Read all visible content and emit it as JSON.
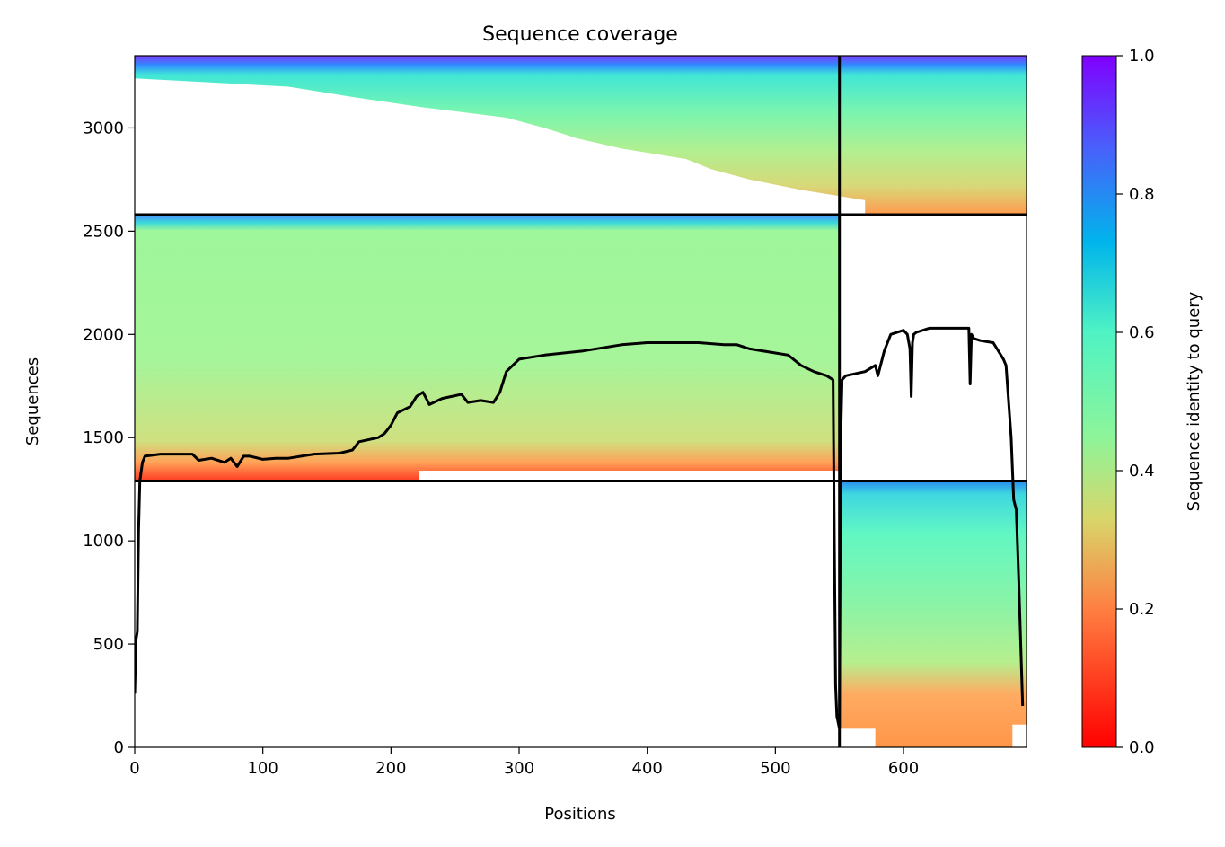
{
  "chart_data": {
    "type": "heatmap",
    "title": "Sequence coverage",
    "xlabel": "Positions",
    "ylabel": "Sequences",
    "xlim": [
      0,
      696
    ],
    "ylim": [
      0,
      3350
    ],
    "xticks": [
      0,
      100,
      200,
      300,
      400,
      500,
      600
    ],
    "xtick_labels": [
      "0",
      "100",
      "200",
      "300",
      "400",
      "500",
      "600"
    ],
    "yticks": [
      0,
      500,
      1000,
      1500,
      2000,
      2500,
      3000
    ],
    "ytick_labels": [
      "0",
      "500",
      "1000",
      "1500",
      "2000",
      "2500",
      "3000"
    ],
    "colorbar": {
      "label": "Sequence identity to query",
      "range": [
        0.0,
        1.0
      ],
      "ticks": [
        0.0,
        0.2,
        0.4,
        0.6,
        0.8,
        1.0
      ],
      "tick_labels": [
        "0.0",
        "0.2",
        "0.4",
        "0.6",
        "0.8",
        "1.0"
      ],
      "colormap": "rainbow_r"
    },
    "chain_boundaries": {
      "x": [
        550
      ],
      "y": [
        1290,
        2580
      ]
    },
    "blocks": [
      {
        "x": [
          0,
          550
        ],
        "y": [
          2580,
          3350
        ],
        "identity_top": 0.95,
        "identity_bottom": 0.22
      },
      {
        "x": [
          550,
          696
        ],
        "y": [
          2580,
          3350
        ],
        "identity_top": 0.95,
        "identity_bottom": 0.22
      },
      {
        "x": [
          0,
          550
        ],
        "y": [
          1290,
          2580
        ],
        "identity_top": 0.85,
        "identity_bottom": 0.1
      },
      {
        "x": [
          550,
          696
        ],
        "y": [
          0,
          1290
        ],
        "identity_top": 0.8,
        "identity_bottom": 0.22
      }
    ],
    "series": [
      {
        "type": "line",
        "color": "#000000",
        "x": [
          0,
          1,
          2,
          3,
          4,
          6,
          8,
          20,
          45,
          50,
          60,
          70,
          75,
          80,
          85,
          90,
          100,
          110,
          120,
          140,
          160,
          170,
          175,
          190,
          195,
          200,
          205,
          215,
          220,
          225,
          230,
          240,
          255,
          260,
          270,
          280,
          285,
          290,
          300,
          320,
          350,
          380,
          400,
          440,
          460,
          470,
          480,
          500,
          510,
          520,
          530,
          540,
          545,
          546,
          547,
          548,
          550,
          551,
          552,
          555,
          570,
          578,
          580,
          585,
          590,
          600,
          603,
          605,
          606,
          607,
          608,
          610,
          620,
          640,
          651,
          652,
          653,
          655,
          660,
          670,
          678,
          680,
          684,
          686,
          688,
          690,
          693
        ],
        "y": [
          260,
          520,
          560,
          1050,
          1290,
          1380,
          1410,
          1420,
          1420,
          1390,
          1400,
          1380,
          1400,
          1360,
          1410,
          1410,
          1395,
          1400,
          1400,
          1420,
          1425,
          1440,
          1480,
          1500,
          1520,
          1560,
          1620,
          1650,
          1700,
          1720,
          1660,
          1690,
          1710,
          1670,
          1680,
          1670,
          1720,
          1820,
          1880,
          1900,
          1920,
          1950,
          1960,
          1960,
          1950,
          1950,
          1930,
          1910,
          1900,
          1850,
          1820,
          1800,
          1780,
          1000,
          300,
          150,
          90,
          1500,
          1780,
          1800,
          1820,
          1850,
          1800,
          1920,
          2000,
          2020,
          2000,
          1930,
          1700,
          1960,
          2000,
          2010,
          2030,
          2030,
          2030,
          1760,
          2000,
          1980,
          1970,
          1960,
          1880,
          1850,
          1500,
          1200,
          1150,
          800,
          200
        ]
      }
    ]
  }
}
